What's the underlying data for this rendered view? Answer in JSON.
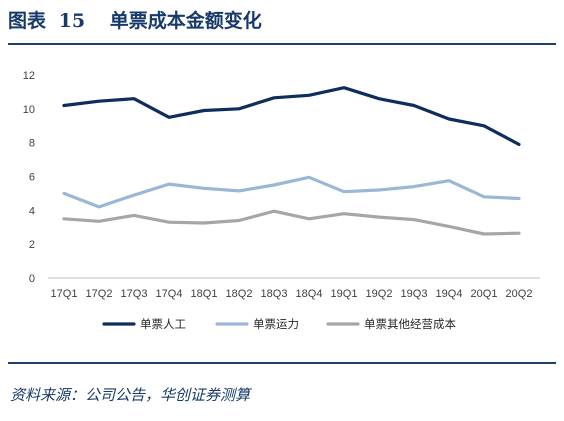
{
  "figure": {
    "label": "图表",
    "number": "15",
    "title": "单票成本金额变化"
  },
  "source": "资料来源：公司公告，华创证券测算",
  "chart_data": {
    "type": "line",
    "categories": [
      "17Q1",
      "17Q2",
      "17Q3",
      "17Q4",
      "18Q1",
      "18Q2",
      "18Q3",
      "18Q4",
      "19Q1",
      "19Q2",
      "19Q3",
      "19Q4",
      "20Q1",
      "20Q2"
    ],
    "series": [
      {
        "name": "单票人工",
        "color": "#0f2d5c",
        "values": [
          10.2,
          10.45,
          10.6,
          9.5,
          9.9,
          10.0,
          10.65,
          10.8,
          11.25,
          10.6,
          10.2,
          9.4,
          9.0,
          7.9
        ]
      },
      {
        "name": "单票运力",
        "color": "#9cb6d6",
        "values": [
          5.0,
          4.2,
          4.9,
          5.55,
          5.3,
          5.15,
          5.5,
          5.95,
          5.1,
          5.2,
          5.4,
          5.75,
          4.8,
          4.7
        ]
      },
      {
        "name": "单票其他经营成本",
        "color": "#a6a6a6",
        "values": [
          3.5,
          3.35,
          3.7,
          3.3,
          3.25,
          3.4,
          3.95,
          3.5,
          3.8,
          3.6,
          3.45,
          3.05,
          2.6,
          2.65
        ]
      }
    ],
    "ylim": [
      0,
      12
    ],
    "yticks": [
      "0",
      "2",
      "4",
      "6",
      "8",
      "10",
      "12"
    ],
    "grid": false,
    "legend": "bottom"
  }
}
